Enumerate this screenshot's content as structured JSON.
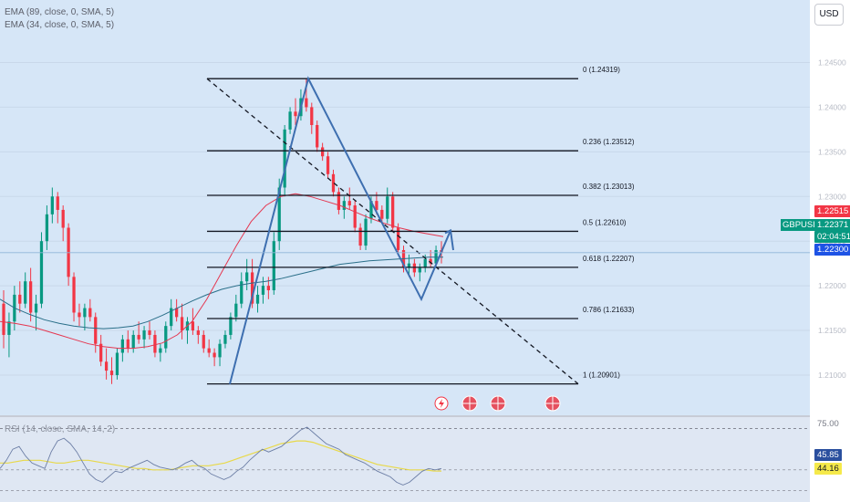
{
  "legend": {
    "ema89": "EMA (89, close, 0, SMA, 5)",
    "ema34": "EMA (34, close, 0, SMA, 5)",
    "rsi": "RSI (14, close, SMA, 14, 2)"
  },
  "currency_button": "USD",
  "symbol": "GBPUSD",
  "price_labels": {
    "high_marker": "1.22515",
    "current": "1.22371",
    "countdown": "02:04:51",
    "low_marker": "1.22300"
  },
  "rsi_labels": {
    "upper": "75.00",
    "value": "45.85",
    "signal": "44.16"
  },
  "colors": {
    "up": "#089981",
    "down": "#f23645",
    "ema89": "#2a6f89",
    "ema34": "#e53750",
    "pattern": "#3e6fb0",
    "fib": "#131722",
    "rsi": "#6d7fa6",
    "rsi_ma": "#e8d94a",
    "bg_main": "#d6e6f7",
    "bg_rsi": "#dfe7f3"
  },
  "chart_data": {
    "type": "candlestick",
    "symbol": "GBPUSD",
    "y_ticks": [
      "1.24500",
      "1.24000",
      "1.23500",
      "1.23000",
      "1.22500",
      "1.22000",
      "1.21500",
      "1.21000"
    ],
    "ylim": [
      1.2055,
      1.252
    ],
    "fib_levels": [
      {
        "ratio": "0",
        "price": 1.24319,
        "label": "0 (1.24319)"
      },
      {
        "ratio": "0.236",
        "price": 1.23512,
        "label": "0.236 (1.23512)"
      },
      {
        "ratio": "0.382",
        "price": 1.23013,
        "label": "0.382 (1.23013)"
      },
      {
        "ratio": "0.5",
        "price": 1.2261,
        "label": "0.5 (1.22610)"
      },
      {
        "ratio": "0.618",
        "price": 1.22207,
        "label": "0.618 (1.22207)"
      },
      {
        "ratio": "0.786",
        "price": 1.21633,
        "label": "0.786 (1.21633)"
      },
      {
        "ratio": "1",
        "price": 1.20901,
        "label": "1 (1.20901)"
      }
    ],
    "candles": [
      [
        1.218,
        1.2195,
        1.213,
        1.2145
      ],
      [
        1.2145,
        1.217,
        1.212,
        1.216
      ],
      [
        1.216,
        1.22,
        1.215,
        1.219
      ],
      [
        1.219,
        1.2205,
        1.217,
        1.218
      ],
      [
        1.218,
        1.2215,
        1.2175,
        1.2205
      ],
      [
        1.2205,
        1.222,
        1.216,
        1.217
      ],
      [
        1.217,
        1.219,
        1.215,
        1.218
      ],
      [
        1.218,
        1.226,
        1.2175,
        1.225
      ],
      [
        1.225,
        1.229,
        1.224,
        1.228
      ],
      [
        1.228,
        1.231,
        1.227,
        1.23
      ],
      [
        1.23,
        1.2305,
        1.227,
        1.2285
      ],
      [
        1.2285,
        1.229,
        1.225,
        1.2265
      ],
      [
        1.2265,
        1.227,
        1.22,
        1.221
      ],
      [
        1.221,
        1.2215,
        1.216,
        1.217
      ],
      [
        1.217,
        1.218,
        1.2155,
        1.2165
      ],
      [
        1.2165,
        1.218,
        1.215,
        1.2175
      ],
      [
        1.2175,
        1.2185,
        1.216,
        1.2165
      ],
      [
        1.2165,
        1.217,
        1.2125,
        1.2135
      ],
      [
        1.2135,
        1.2145,
        1.211,
        1.2115
      ],
      [
        1.2115,
        1.213,
        1.2095,
        1.2105
      ],
      [
        1.2105,
        1.212,
        1.209,
        1.21
      ],
      [
        1.21,
        1.213,
        1.2095,
        1.2125
      ],
      [
        1.2125,
        1.2145,
        1.2115,
        1.214
      ],
      [
        1.214,
        1.215,
        1.2125,
        1.213
      ],
      [
        1.213,
        1.215,
        1.2125,
        1.2145
      ],
      [
        1.2145,
        1.216,
        1.2135,
        1.214
      ],
      [
        1.214,
        1.2155,
        1.213,
        1.215
      ],
      [
        1.215,
        1.216,
        1.214,
        1.2145
      ],
      [
        1.2145,
        1.215,
        1.212,
        1.2125
      ],
      [
        1.2125,
        1.2135,
        1.2115,
        1.213
      ],
      [
        1.213,
        1.216,
        1.2125,
        1.2155
      ],
      [
        1.2155,
        1.2185,
        1.215,
        1.2175
      ],
      [
        1.2175,
        1.2185,
        1.216,
        1.2165
      ],
      [
        1.2165,
        1.218,
        1.214,
        1.215
      ],
      [
        1.215,
        1.2165,
        1.2135,
        1.216
      ],
      [
        1.216,
        1.2175,
        1.2145,
        1.215
      ],
      [
        1.215,
        1.2155,
        1.2135,
        1.2145
      ],
      [
        1.2145,
        1.215,
        1.2125,
        1.213
      ],
      [
        1.213,
        1.214,
        1.212,
        1.2125
      ],
      [
        1.2125,
        1.213,
        1.211,
        1.212
      ],
      [
        1.212,
        1.214,
        1.211,
        1.2135
      ],
      [
        1.2135,
        1.215,
        1.213,
        1.2145
      ],
      [
        1.2145,
        1.217,
        1.214,
        1.2165
      ],
      [
        1.2165,
        1.219,
        1.216,
        1.218
      ],
      [
        1.218,
        1.2215,
        1.2175,
        1.2205
      ],
      [
        1.2205,
        1.223,
        1.2195,
        1.2215
      ],
      [
        1.2215,
        1.223,
        1.2175,
        1.218
      ],
      [
        1.218,
        1.22,
        1.217,
        1.219
      ],
      [
        1.219,
        1.221,
        1.218,
        1.22
      ],
      [
        1.22,
        1.221,
        1.2185,
        1.2195
      ],
      [
        1.2195,
        1.226,
        1.219,
        1.225
      ],
      [
        1.225,
        1.232,
        1.224,
        1.231
      ],
      [
        1.231,
        1.238,
        1.23,
        1.2375
      ],
      [
        1.2375,
        1.24,
        1.237,
        1.2395
      ],
      [
        1.2395,
        1.241,
        1.238,
        1.239
      ],
      [
        1.239,
        1.242,
        1.2385,
        1.241
      ],
      [
        1.241,
        1.2432,
        1.2395,
        1.24
      ],
      [
        1.24,
        1.2405,
        1.237,
        1.238
      ],
      [
        1.238,
        1.2385,
        1.235,
        1.2355
      ],
      [
        1.2355,
        1.236,
        1.234,
        1.2345
      ],
      [
        1.2345,
        1.235,
        1.232,
        1.2325
      ],
      [
        1.2325,
        1.233,
        1.23,
        1.2305
      ],
      [
        1.2305,
        1.231,
        1.228,
        1.2285
      ],
      [
        1.2285,
        1.23,
        1.2275,
        1.2295
      ],
      [
        1.2295,
        1.231,
        1.2285,
        1.229
      ],
      [
        1.229,
        1.2295,
        1.226,
        1.2265
      ],
      [
        1.2265,
        1.227,
        1.224,
        1.2245
      ],
      [
        1.2245,
        1.228,
        1.224,
        1.2275
      ],
      [
        1.2275,
        1.23,
        1.227,
        1.2295
      ],
      [
        1.2295,
        1.2305,
        1.228,
        1.2285
      ],
      [
        1.2285,
        1.229,
        1.227,
        1.2275
      ],
      [
        1.2275,
        1.231,
        1.227,
        1.23
      ],
      [
        1.23,
        1.2305,
        1.226,
        1.2265
      ],
      [
        1.2265,
        1.227,
        1.2235,
        1.224
      ],
      [
        1.224,
        1.2245,
        1.2215,
        1.222
      ],
      [
        1.222,
        1.2235,
        1.221,
        1.2225
      ],
      [
        1.2225,
        1.223,
        1.221,
        1.2215
      ],
      [
        1.2215,
        1.2225,
        1.2205,
        1.222
      ],
      [
        1.222,
        1.2235,
        1.2215,
        1.223
      ],
      [
        1.223,
        1.224,
        1.222,
        1.2225
      ],
      [
        1.2225,
        1.2245,
        1.222,
        1.224
      ],
      [
        1.224,
        1.225,
        1.2225,
        1.2237
      ]
    ],
    "ema89": [
      1.2185,
      1.2175,
      1.2168,
      1.2162,
      1.2158,
      1.2155,
      1.2153,
      1.2152,
      1.2153,
      1.2155,
      1.216,
      1.2167,
      1.2175,
      1.2183,
      1.219,
      1.2196,
      1.22,
      1.2203,
      1.2205,
      1.2208,
      1.2212,
      1.2216,
      1.222,
      1.2224,
      1.2226,
      1.2228,
      1.2229,
      1.223,
      1.2231,
      1.2232,
      1.2232
    ],
    "ema34": [
      1.216,
      1.2158,
      1.2155,
      1.215,
      1.2145,
      1.214,
      1.2135,
      1.2132,
      1.213,
      1.213,
      1.2132,
      1.2136,
      1.2145,
      1.216,
      1.2185,
      1.2215,
      1.2245,
      1.2272,
      1.229,
      1.23,
      1.2303,
      1.23,
      1.2295,
      1.229,
      1.2283,
      1.2276,
      1.227,
      1.2265,
      1.2261,
      1.2258,
      1.2255
    ],
    "pattern_points": [
      [
        1.209
      ],
      [
        1.2432
      ],
      [
        1.2285
      ],
      [
        1.218
      ],
      [
        1.226
      ]
    ],
    "rsi": {
      "ylim": [
        25,
        80
      ],
      "upper": 75.0,
      "values": [
        46,
        52,
        60,
        62,
        55,
        50,
        48,
        46,
        58,
        66,
        68,
        64,
        58,
        50,
        42,
        38,
        36,
        40,
        44,
        43,
        46,
        48,
        50,
        52,
        49,
        47,
        46,
        45,
        47,
        50,
        52,
        48,
        46,
        42,
        40,
        38,
        40,
        44,
        47,
        52,
        56,
        60,
        58,
        60,
        62,
        66,
        70,
        74,
        76,
        72,
        68,
        64,
        62,
        60,
        56,
        54,
        52,
        50,
        47,
        44,
        42,
        40,
        36,
        34,
        36,
        40,
        44,
        46,
        45,
        46
      ],
      "ma": [
        50,
        50,
        51,
        52,
        52,
        52,
        51,
        50,
        50,
        51,
        52,
        52,
        51,
        50,
        49,
        48,
        47,
        46,
        46,
        45,
        45,
        45,
        46,
        47,
        48,
        48,
        48,
        49,
        50,
        52,
        54,
        56,
        58,
        60,
        62,
        64,
        65,
        66,
        66,
        65,
        63,
        61,
        59,
        57,
        55,
        53,
        51,
        49,
        48,
        47,
        46,
        45,
        45,
        45,
        44.2,
        44.16
      ]
    }
  }
}
